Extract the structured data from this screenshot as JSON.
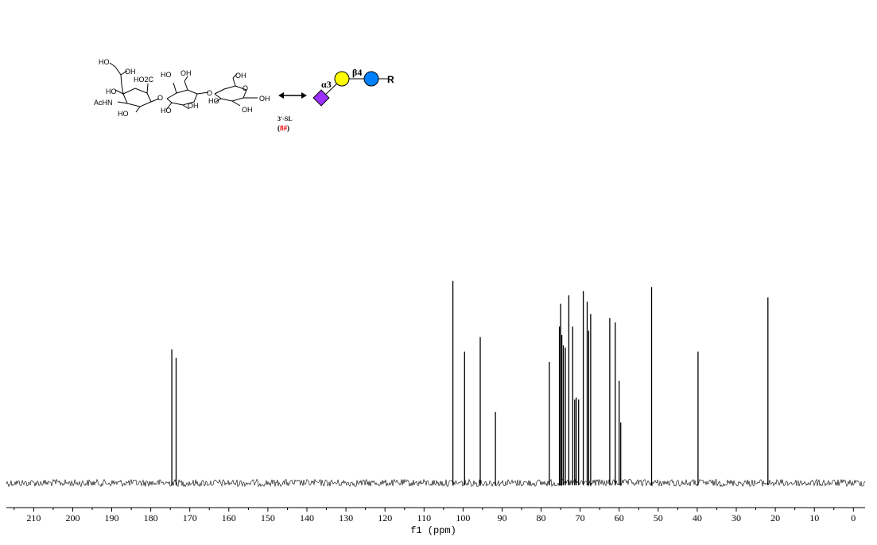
{
  "structure": {
    "compound_label": "3'-SL",
    "compound_code": "8#",
    "paren_open": "(",
    "paren_close": ")",
    "linkage_alpha": "α3",
    "linkage_beta": "β4",
    "reducing_end": "R",
    "atom_labels": {
      "ho_top": "HO",
      "oh_top": "OH",
      "ho2c": "HO2C",
      "ho_left1": "HO",
      "achn": "AcHN",
      "ho_bottom1": "HO",
      "o_link1": "O",
      "ho_gal1": "HO",
      "oh_gal1": "OH",
      "ho_gal2": "HO",
      "oh_gal2": "OH",
      "o_link2": "O",
      "oh_glc1": "OH",
      "ho_glc2": "HO",
      "oh_glc2": "OH",
      "oh_glc3": "OH",
      "ring_o": "O"
    },
    "colors": {
      "neu5ac": "#9b30ff",
      "gal": "#ffff00",
      "glc": "#0080ff"
    }
  },
  "chart_data": {
    "type": "line",
    "xlabel": "f1 (ppm)",
    "xlim": [
      217,
      -3
    ],
    "x_reversed": true,
    "ticks": [
      210,
      200,
      190,
      180,
      170,
      160,
      150,
      140,
      130,
      120,
      110,
      100,
      90,
      80,
      70,
      60,
      50,
      40,
      30,
      20,
      10,
      0
    ],
    "baseline": 0,
    "ylim": [
      -0.05,
      1.0
    ],
    "peaks": [
      {
        "x": 174.6,
        "y": 0.64
      },
      {
        "x": 173.5,
        "y": 0.6
      },
      {
        "x": 102.6,
        "y": 0.97
      },
      {
        "x": 99.6,
        "y": 0.63
      },
      {
        "x": 95.6,
        "y": 0.7
      },
      {
        "x": 91.7,
        "y": 0.34
      },
      {
        "x": 77.9,
        "y": 0.58
      },
      {
        "x": 75.3,
        "y": 0.75
      },
      {
        "x": 75.0,
        "y": 0.86
      },
      {
        "x": 74.7,
        "y": 0.71
      },
      {
        "x": 74.3,
        "y": 0.66
      },
      {
        "x": 73.8,
        "y": 0.65
      },
      {
        "x": 72.9,
        "y": 0.9
      },
      {
        "x": 71.9,
        "y": 0.75
      },
      {
        "x": 71.4,
        "y": 0.4
      },
      {
        "x": 71.0,
        "y": 0.41
      },
      {
        "x": 70.4,
        "y": 0.4
      },
      {
        "x": 69.2,
        "y": 0.92
      },
      {
        "x": 68.2,
        "y": 0.87
      },
      {
        "x": 67.8,
        "y": 0.73
      },
      {
        "x": 67.3,
        "y": 0.81
      },
      {
        "x": 62.4,
        "y": 0.79
      },
      {
        "x": 61.0,
        "y": 0.77
      },
      {
        "x": 60.0,
        "y": 0.49
      },
      {
        "x": 59.6,
        "y": 0.29
      },
      {
        "x": 51.7,
        "y": 0.94
      },
      {
        "x": 39.8,
        "y": 0.63
      },
      {
        "x": 21.9,
        "y": 0.89
      }
    ]
  }
}
